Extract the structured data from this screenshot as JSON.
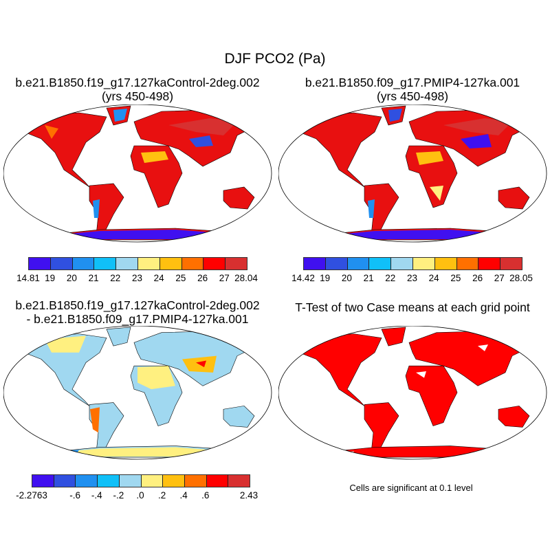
{
  "title": "DJF PCO2 (Pa)",
  "panels": [
    {
      "title_lines": [
        "b.e21.B1850.f19_g17.127kaControl-2deg.002",
        "(yrs 450-498)"
      ]
    },
    {
      "title_lines": [
        "b.e21.B1850.f09_g17.PMIP4-127ka.001",
        "(yrs 450-498)"
      ]
    },
    {
      "title_lines": [
        "b.e21.B1850.f19_g17.127kaControl-2deg.002",
        "- b.e21.B1850.f09_g17.PMIP4-127ka.001"
      ]
    },
    {
      "title_lines": [
        "T-Test of two Case means at each grid point"
      ]
    }
  ],
  "colors": [
    "#4010f0",
    "#3050e0",
    "#2090f0",
    "#10c0f8",
    "#a0d8f0",
    "#fff080",
    "#ffc010",
    "#ff7000",
    "#ff0000",
    "#d83030"
  ],
  "colorbars": [
    {
      "labels": [
        "14.81",
        "19",
        "20",
        "21",
        "22",
        "23",
        "24",
        "25",
        "26",
        "27",
        "28.04"
      ]
    },
    {
      "labels": [
        "14.42",
        "19",
        "20",
        "21",
        "22",
        "23",
        "24",
        "25",
        "26",
        "27",
        "28.05"
      ]
    },
    {
      "labels": [
        "-2.2763",
        "",
        "-.6",
        "-.4",
        "-.2",
        ".0",
        ".2",
        ".4",
        ".6",
        "",
        "2.43"
      ]
    }
  ],
  "significance_note": "Cells are significant at 0.1 level"
}
